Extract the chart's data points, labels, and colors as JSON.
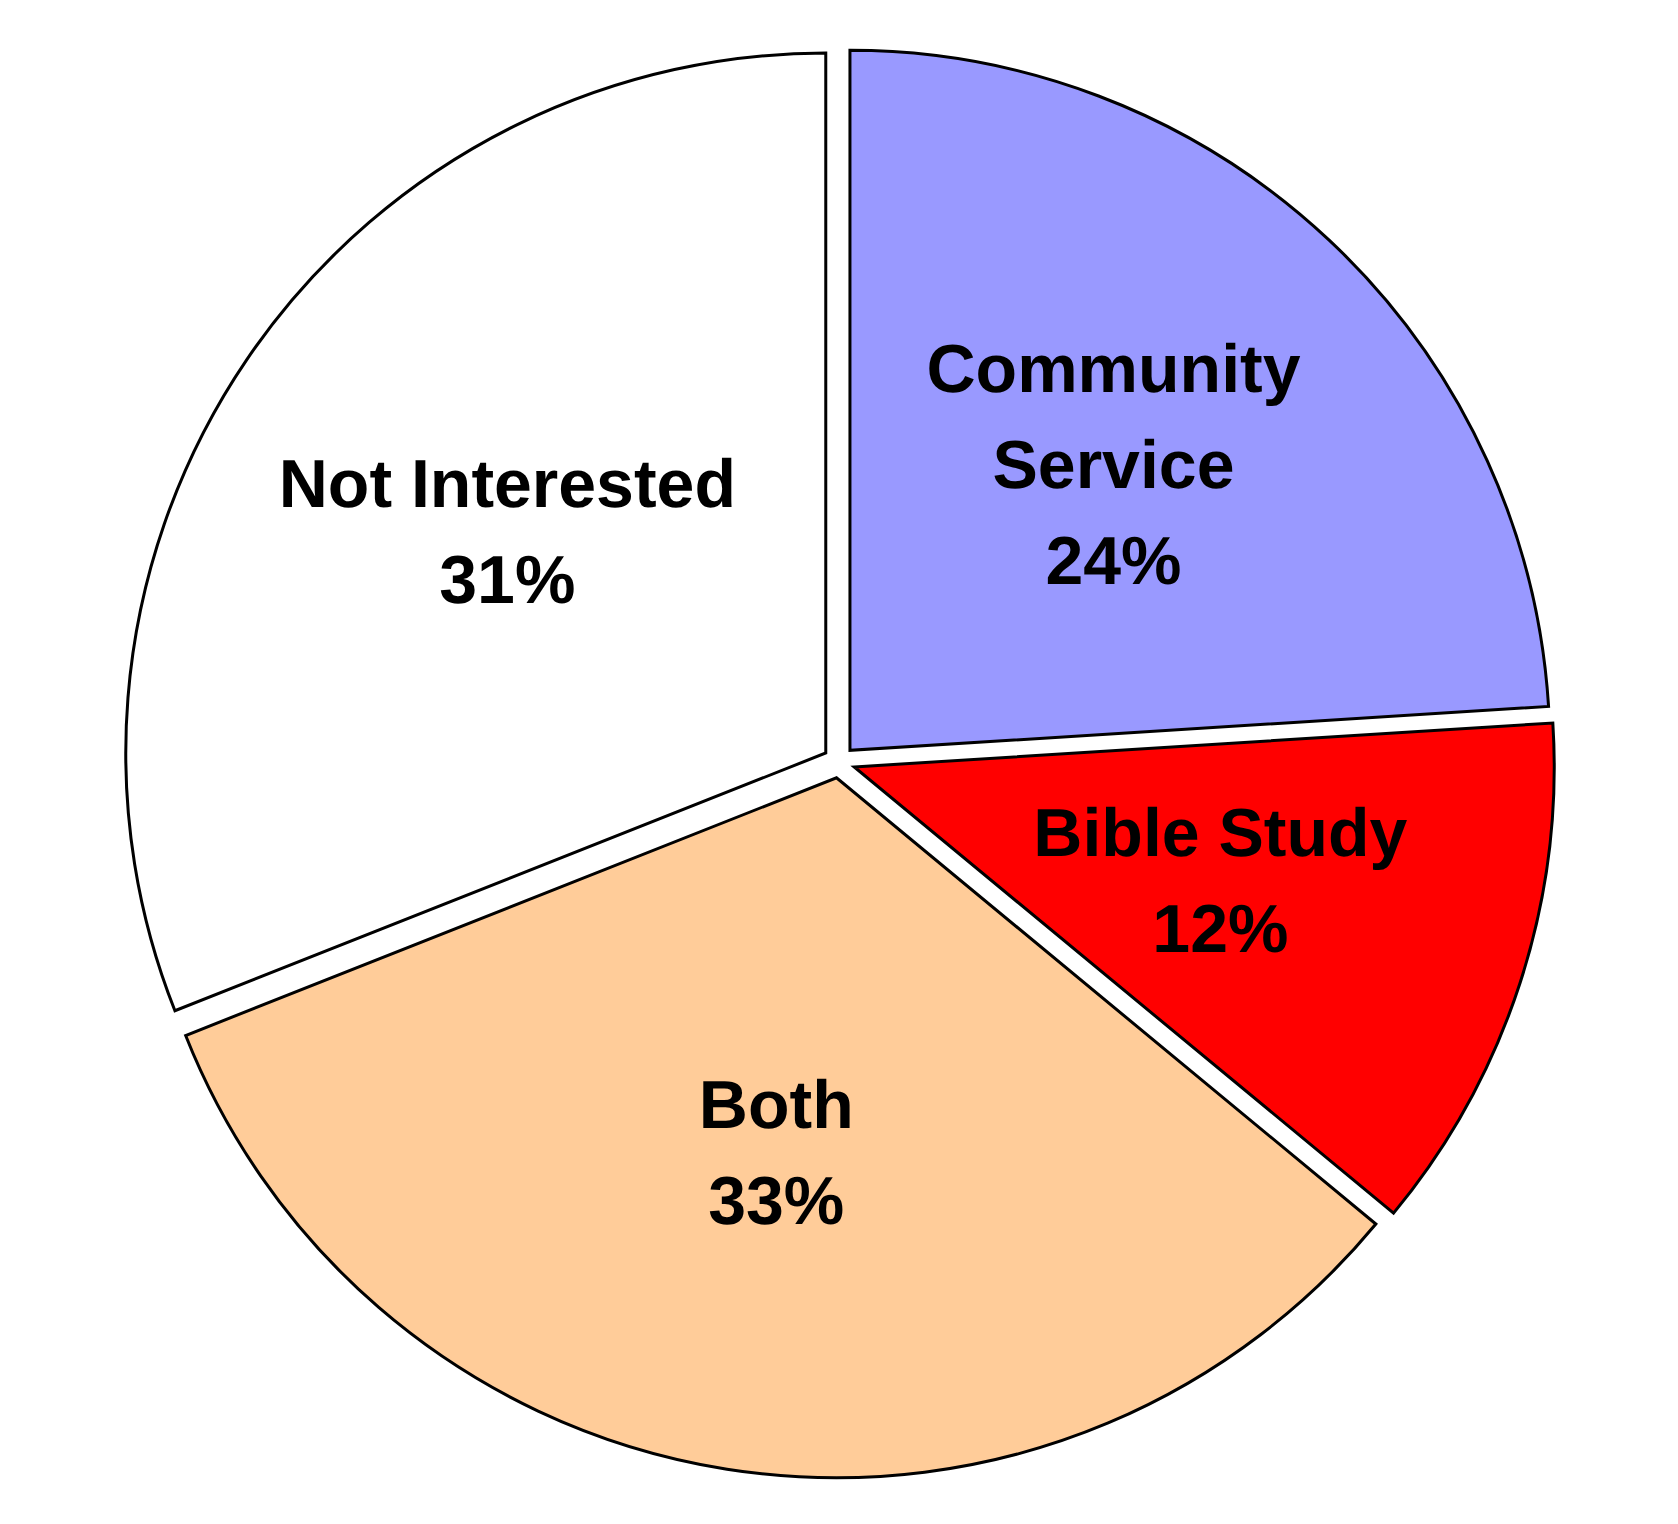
{
  "chart_data": {
    "type": "pie",
    "categories": [
      "Community Service",
      "Bible Study",
      "Both",
      "Not Interested"
    ],
    "values": [
      24,
      12,
      33,
      31
    ],
    "colors": [
      "#9999ff",
      "#ff0000",
      "#ffcc99",
      "#ffffff"
    ],
    "value_labels": [
      "24%",
      "12%",
      "33%",
      "31%"
    ]
  }
}
